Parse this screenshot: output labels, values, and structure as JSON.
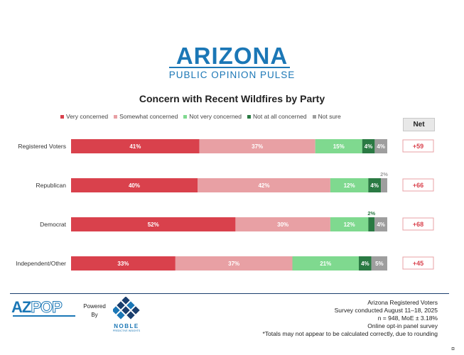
{
  "brand": {
    "name": "ARIZONA",
    "subtitle": "PUBLIC OPINION PULSE"
  },
  "net_header": "Net",
  "colors": {
    "very_concerned": "#d9414c",
    "somewhat_concerned": "#e8a0a4",
    "not_very_concerned": "#7fd98f",
    "not_at_all_concerned": "#2a7a43",
    "not_sure": "#9e9e9e",
    "net_text": "#d9414c",
    "net_border": "#e8a0a4"
  },
  "chart_data": {
    "type": "bar",
    "orientation": "horizontal",
    "stacked": true,
    "title": "Concern with Recent Wildfires by Party",
    "categories": [
      "Registered Voters",
      "Republican",
      "Democrat",
      "Independent/Other"
    ],
    "series": [
      {
        "name": "Very concerned",
        "values": [
          41,
          40,
          52,
          33
        ],
        "labels": [
          "41%",
          "40%",
          "52%",
          "33%"
        ]
      },
      {
        "name": "Somewhat concerned",
        "values": [
          37,
          42,
          30,
          37
        ],
        "labels": [
          "37%",
          "42%",
          "30%",
          "37%"
        ]
      },
      {
        "name": "Not very concerned",
        "values": [
          15,
          12,
          12,
          21
        ],
        "labels": [
          "15%",
          "12%",
          "12%",
          "21%"
        ]
      },
      {
        "name": "Not at all concerned",
        "values": [
          4,
          4,
          2,
          4
        ],
        "labels": [
          "4%",
          "4%",
          "2%",
          "4%"
        ]
      },
      {
        "name": "Not sure",
        "values": [
          4,
          2,
          4,
          5
        ],
        "labels": [
          "4%",
          "2%",
          "4%",
          "5%"
        ]
      }
    ],
    "net": [
      "+59",
      "+66",
      "+68",
      "+45"
    ],
    "legend_position": "top",
    "grid": false
  },
  "footer": {
    "logo_az": "AZ",
    "logo_pop": "POP",
    "powered_by": [
      "Powered",
      "By"
    ],
    "noble_name": "NOBLE",
    "noble_sub": "PREDICTIVE INSIGHTS",
    "method_lines": [
      "Arizona Registered Voters",
      "Survey conducted August 11–18, 2025",
      "n = 948, MoE ± 3.18%",
      "Online opt-in panel survey",
      "*Totals may not appear to be calculated correctly, due to rounding"
    ],
    "corner_icon": "¤"
  }
}
